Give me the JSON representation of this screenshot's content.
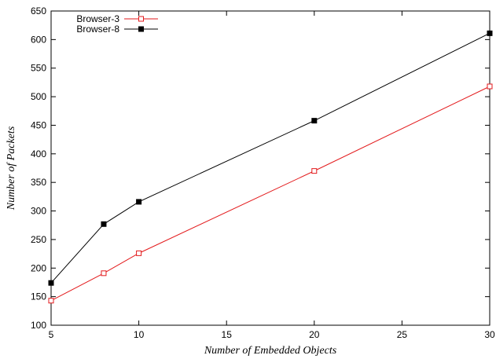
{
  "chart_data": {
    "type": "line",
    "title": "",
    "xlabel": "Number of Embedded Objects",
    "ylabel": "Number of Packets",
    "xlim": [
      5,
      30
    ],
    "ylim": [
      100,
      650
    ],
    "xticks": [
      5,
      10,
      15,
      20,
      25,
      30
    ],
    "yticks": [
      100,
      150,
      200,
      250,
      300,
      350,
      400,
      450,
      500,
      550,
      600,
      650
    ],
    "grid": false,
    "legend_position": "top-left",
    "series": [
      {
        "name": "Browser-3",
        "color": "#e31a1c",
        "marker": "open-square",
        "x": [
          5,
          8,
          10,
          20,
          30
        ],
        "y": [
          143,
          191,
          226,
          370,
          518
        ]
      },
      {
        "name": "Browser-8",
        "color": "#000000",
        "marker": "filled-square",
        "x": [
          5,
          8,
          10,
          20,
          30
        ],
        "y": [
          174,
          277,
          316,
          458,
          611
        ]
      }
    ]
  }
}
